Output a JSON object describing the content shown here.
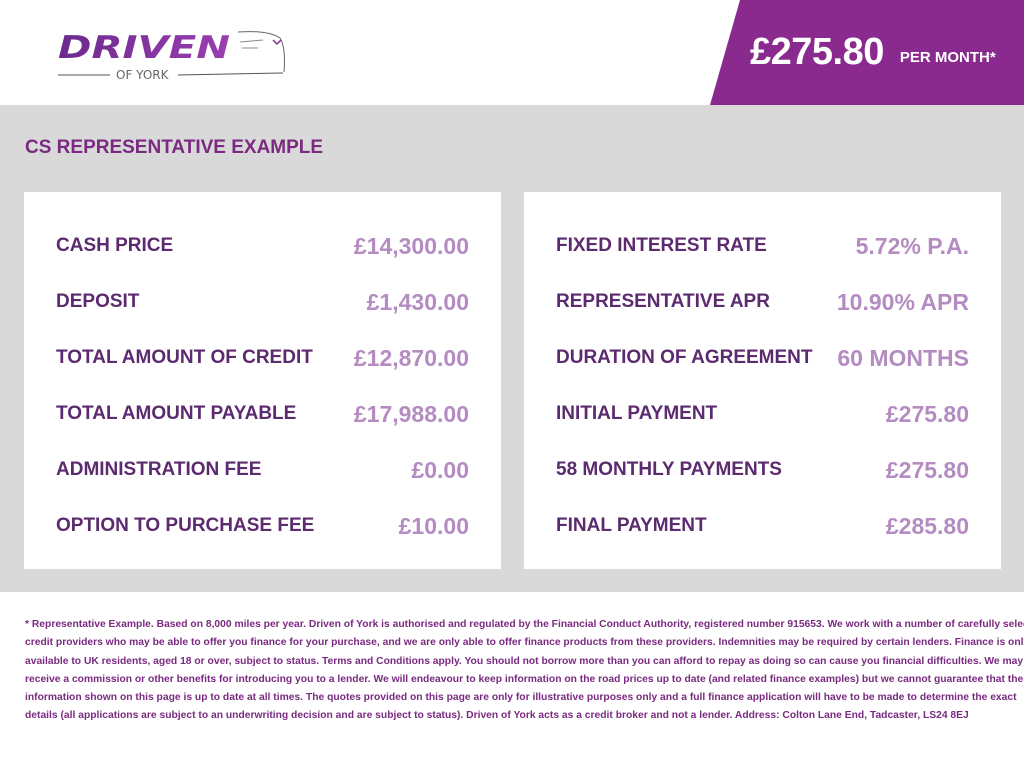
{
  "brand": {
    "logo_text": "DRIVEN",
    "logo_sub": "OF YORK"
  },
  "banner": {
    "price": "£275.80",
    "suffix": "PER MONTH*"
  },
  "section_title": "CS REPRESENTATIVE EXAMPLE",
  "left_rows": [
    {
      "label": "CASH PRICE",
      "value": "£14,300.00"
    },
    {
      "label": "DEPOSIT",
      "value": "£1,430.00"
    },
    {
      "label": "TOTAL AMOUNT OF CREDIT",
      "value": "£12,870.00"
    },
    {
      "label": "TOTAL AMOUNT PAYABLE",
      "value": "£17,988.00"
    },
    {
      "label": "ADMINISTRATION FEE",
      "value": "£0.00"
    },
    {
      "label": "OPTION TO PURCHASE FEE",
      "value": "£10.00"
    }
  ],
  "right_rows": [
    {
      "label": "FIXED INTEREST RATE",
      "value": "5.72% P.A."
    },
    {
      "label": "REPRESENTATIVE APR",
      "value": "10.90% APR"
    },
    {
      "label": "DURATION OF AGREEMENT",
      "value": "60 MONTHS"
    },
    {
      "label": "INITIAL PAYMENT",
      "value": "£275.80"
    },
    {
      "label": "58 MONTHLY PAYMENTS",
      "value": "£275.80"
    },
    {
      "label": "FINAL PAYMENT",
      "value": "£285.80"
    }
  ],
  "disclaimer_lines": [
    "* Representative Example. Based on 8,000 miles per year. Driven of York is authorised and regulated by the Financial Conduct Authority, registered number 915653. We work with a number of carefully selected",
    "credit providers who may be able to offer you finance for your purchase, and we are only able to offer finance products from these providers. Indemnities may be required by certain lenders. Finance is only",
    "available to UK residents, aged 18 or over, subject to status. Terms and Conditions apply. You should not borrow more than you can afford to repay as doing so can cause you financial difficulties. We may",
    "receive a commission or other benefits for introducing you to a lender. We will endeavour to keep information on the road prices up to date (and related finance examples) but we cannot guarantee that the",
    "information shown on this page is up to date at all times. The quotes provided on this page are only for illustrative purposes only and a full finance application will have to be made to determine the exact",
    "details (all applications are subject to an underwriting decision and are subject to status). Driven of York acts as a credit broker and not a lender. Address: Colton Lane End, Tadcaster, LS24 8EJ"
  ],
  "colors": {
    "banner": "#8a2a8e",
    "label": "#5b2a6f",
    "value": "#b48cc2",
    "background": "#d9d9d9"
  }
}
